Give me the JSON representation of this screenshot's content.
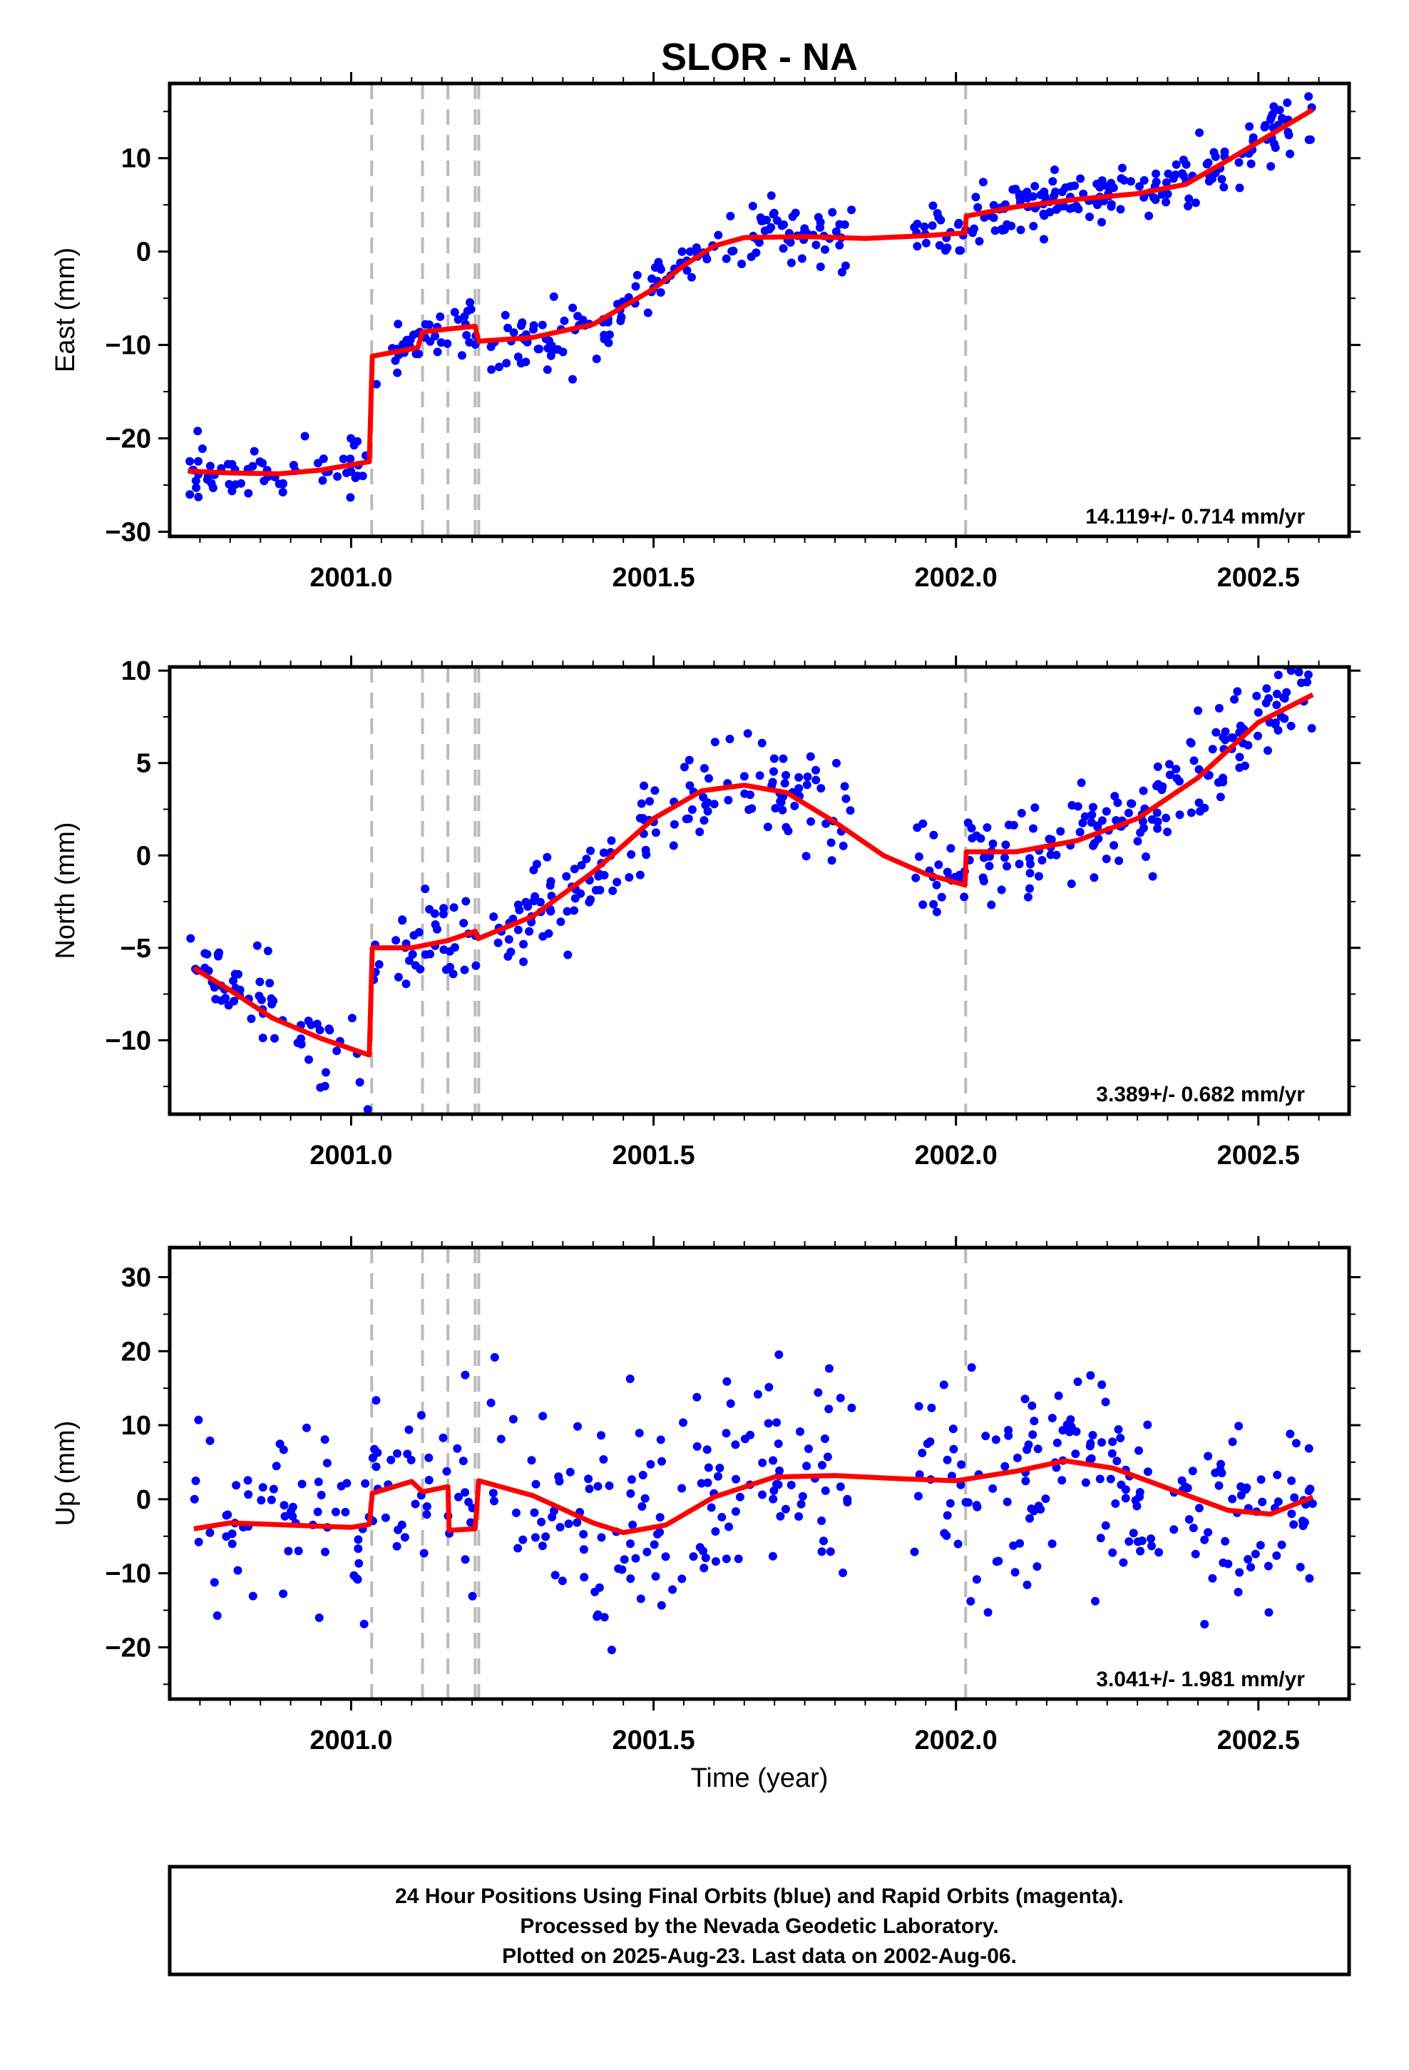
{
  "chart_data": {
    "type": "scatter",
    "title": "SLOR - NA",
    "x_label": "Time (year)",
    "x_ticks": [
      2001.0,
      2001.5,
      2002.0,
      2002.5
    ],
    "x_tick_labels": [
      "2001.0",
      "2001.5",
      "2002.0",
      "2002.5"
    ],
    "x_range": [
      2000.7,
      2002.65
    ],
    "grid": false,
    "colors": {
      "points": "#0000ff",
      "fit": "#ff0000",
      "event_lines": "#bbbbbb",
      "frame": "#000000"
    },
    "event_lines_x": [
      2001.034,
      2001.118,
      2001.16,
      2001.205,
      2001.211,
      2002.016
    ],
    "panels": [
      {
        "name": "east",
        "y_label": "East (mm)",
        "y_range": [
          -30.5,
          18
        ],
        "y_ticks": [
          -30,
          -20,
          -10,
          0,
          10
        ],
        "y_tick_labels": [
          "−30",
          "−20",
          "−10",
          "0",
          "10"
        ],
        "rate": "14.119+/- 0.714 mm/yr",
        "fit": [
          [
            2000.73,
            -23.5
          ],
          [
            2000.8,
            -23.7
          ],
          [
            2000.88,
            -23.8
          ],
          [
            2000.95,
            -23.4
          ],
          [
            2001.03,
            -22.5
          ],
          [
            2001.035,
            -11.2
          ],
          [
            2001.11,
            -10.3
          ],
          [
            2001.118,
            -8.6
          ],
          [
            2001.16,
            -8.3
          ],
          [
            2001.205,
            -8.0
          ],
          [
            2001.211,
            -9.6
          ],
          [
            2001.3,
            -9.2
          ],
          [
            2001.4,
            -7.8
          ],
          [
            2001.5,
            -4.0
          ],
          [
            2001.55,
            -1.5
          ],
          [
            2001.6,
            0.6
          ],
          [
            2001.65,
            1.5
          ],
          [
            2001.75,
            1.6
          ],
          [
            2001.85,
            1.4
          ],
          [
            2001.95,
            1.7
          ],
          [
            2002.015,
            2.0
          ],
          [
            2002.017,
            3.8
          ],
          [
            2002.1,
            4.8
          ],
          [
            2002.2,
            5.6
          ],
          [
            2002.3,
            6.2
          ],
          [
            2002.38,
            7.2
          ],
          [
            2002.45,
            9.8
          ],
          [
            2002.52,
            12.5
          ],
          [
            2002.59,
            15.2
          ]
        ],
        "clusters": [
          {
            "x": [
              2000.73,
              2001.03
            ],
            "fit": true,
            "sd": 1.4,
            "n": 62
          },
          {
            "x": [
              2001.035,
              2001.21
            ],
            "fit": true,
            "sd": 1.6,
            "n": 40
          },
          {
            "x": [
              2001.23,
              2001.83
            ],
            "fit": true,
            "sd": 1.6,
            "n": 150
          },
          {
            "x": [
              2001.93,
              2002.59
            ],
            "fit": true,
            "sd": 1.5,
            "n": 185
          }
        ]
      },
      {
        "name": "north",
        "y_label": "North (mm)",
        "y_range": [
          -14,
          10.2
        ],
        "y_ticks": [
          -10,
          -5,
          0,
          5,
          10
        ],
        "y_tick_labels": [
          "−10",
          "−5",
          "0",
          "5",
          "10"
        ],
        "rate": "3.389+/- 0.682 mm/yr",
        "fit": [
          [
            2000.74,
            -6.1
          ],
          [
            2000.8,
            -7.3
          ],
          [
            2000.87,
            -8.8
          ],
          [
            2000.95,
            -9.9
          ],
          [
            2001.03,
            -10.8
          ],
          [
            2001.035,
            -5.0
          ],
          [
            2001.1,
            -5.0
          ],
          [
            2001.16,
            -4.6
          ],
          [
            2001.205,
            -4.1
          ],
          [
            2001.21,
            -4.5
          ],
          [
            2001.3,
            -3.3
          ],
          [
            2001.4,
            -0.9
          ],
          [
            2001.5,
            2.0
          ],
          [
            2001.58,
            3.5
          ],
          [
            2001.65,
            3.8
          ],
          [
            2001.72,
            3.4
          ],
          [
            2001.8,
            1.8
          ],
          [
            2001.88,
            0.0
          ],
          [
            2001.95,
            -1.0
          ],
          [
            2002.015,
            -1.6
          ],
          [
            2002.017,
            0.2
          ],
          [
            2002.1,
            0.2
          ],
          [
            2002.2,
            0.8
          ],
          [
            2002.3,
            2.0
          ],
          [
            2002.4,
            4.2
          ],
          [
            2002.5,
            7.2
          ],
          [
            2002.59,
            8.7
          ]
        ],
        "clusters": [
          {
            "x": [
              2000.73,
              2001.03
            ],
            "fit": true,
            "sd": 1.4,
            "n": 62
          },
          {
            "x": [
              2001.035,
              2001.21
            ],
            "fit": true,
            "sd": 1.5,
            "n": 40
          },
          {
            "x": [
              2001.23,
              2001.83
            ],
            "fit": true,
            "sd": 1.3,
            "n": 150
          },
          {
            "x": [
              2001.93,
              2002.59
            ],
            "fit": true,
            "sd": 1.3,
            "n": 185
          }
        ]
      },
      {
        "name": "up",
        "y_label": "Up (mm)",
        "y_range": [
          -27,
          34
        ],
        "y_ticks": [
          -20,
          -10,
          0,
          10,
          20,
          30
        ],
        "y_tick_labels": [
          "−20",
          "−10",
          "0",
          "10",
          "20",
          "30"
        ],
        "rate": "3.041+/- 1.981 mm/yr",
        "fit": [
          [
            2000.74,
            -4.0
          ],
          [
            2000.8,
            -3.2
          ],
          [
            2000.9,
            -3.5
          ],
          [
            2001.0,
            -3.8
          ],
          [
            2001.03,
            -3.4
          ],
          [
            2001.035,
            0.8
          ],
          [
            2001.1,
            2.4
          ],
          [
            2001.118,
            1.0
          ],
          [
            2001.16,
            1.7
          ],
          [
            2001.162,
            -4.2
          ],
          [
            2001.205,
            -4.0
          ],
          [
            2001.211,
            2.5
          ],
          [
            2001.3,
            0.5
          ],
          [
            2001.4,
            -3.2
          ],
          [
            2001.45,
            -4.5
          ],
          [
            2001.52,
            -3.5
          ],
          [
            2001.6,
            0.3
          ],
          [
            2001.7,
            3.0
          ],
          [
            2001.8,
            3.2
          ],
          [
            2001.9,
            2.8
          ],
          [
            2002.0,
            2.5
          ],
          [
            2002.1,
            3.8
          ],
          [
            2002.18,
            5.2
          ],
          [
            2002.26,
            4.2
          ],
          [
            2002.35,
            1.5
          ],
          [
            2002.45,
            -1.5
          ],
          [
            2002.52,
            -2.0
          ],
          [
            2002.59,
            0.3
          ]
        ],
        "clusters": [
          {
            "x": [
              2000.73,
              2001.03
            ],
            "fit": true,
            "sd": 6.0,
            "n": 62
          },
          {
            "x": [
              2001.035,
              2001.21
            ],
            "fit": true,
            "sd": 6.0,
            "n": 40
          },
          {
            "x": [
              2001.23,
              2001.83
            ],
            "fit": true,
            "sd": 7.0,
            "n": 150
          },
          {
            "x": [
              2001.93,
              2002.59
            ],
            "fit": true,
            "sd": 7.0,
            "n": 185
          }
        ]
      }
    ],
    "footer": [
      "24 Hour Positions Using Final Orbits (blue) and Rapid Orbits (magenta).",
      "Processed by the Nevada Geodetic Laboratory.",
      "Plotted on 2025-Aug-23. Last data on 2002-Aug-06."
    ]
  }
}
